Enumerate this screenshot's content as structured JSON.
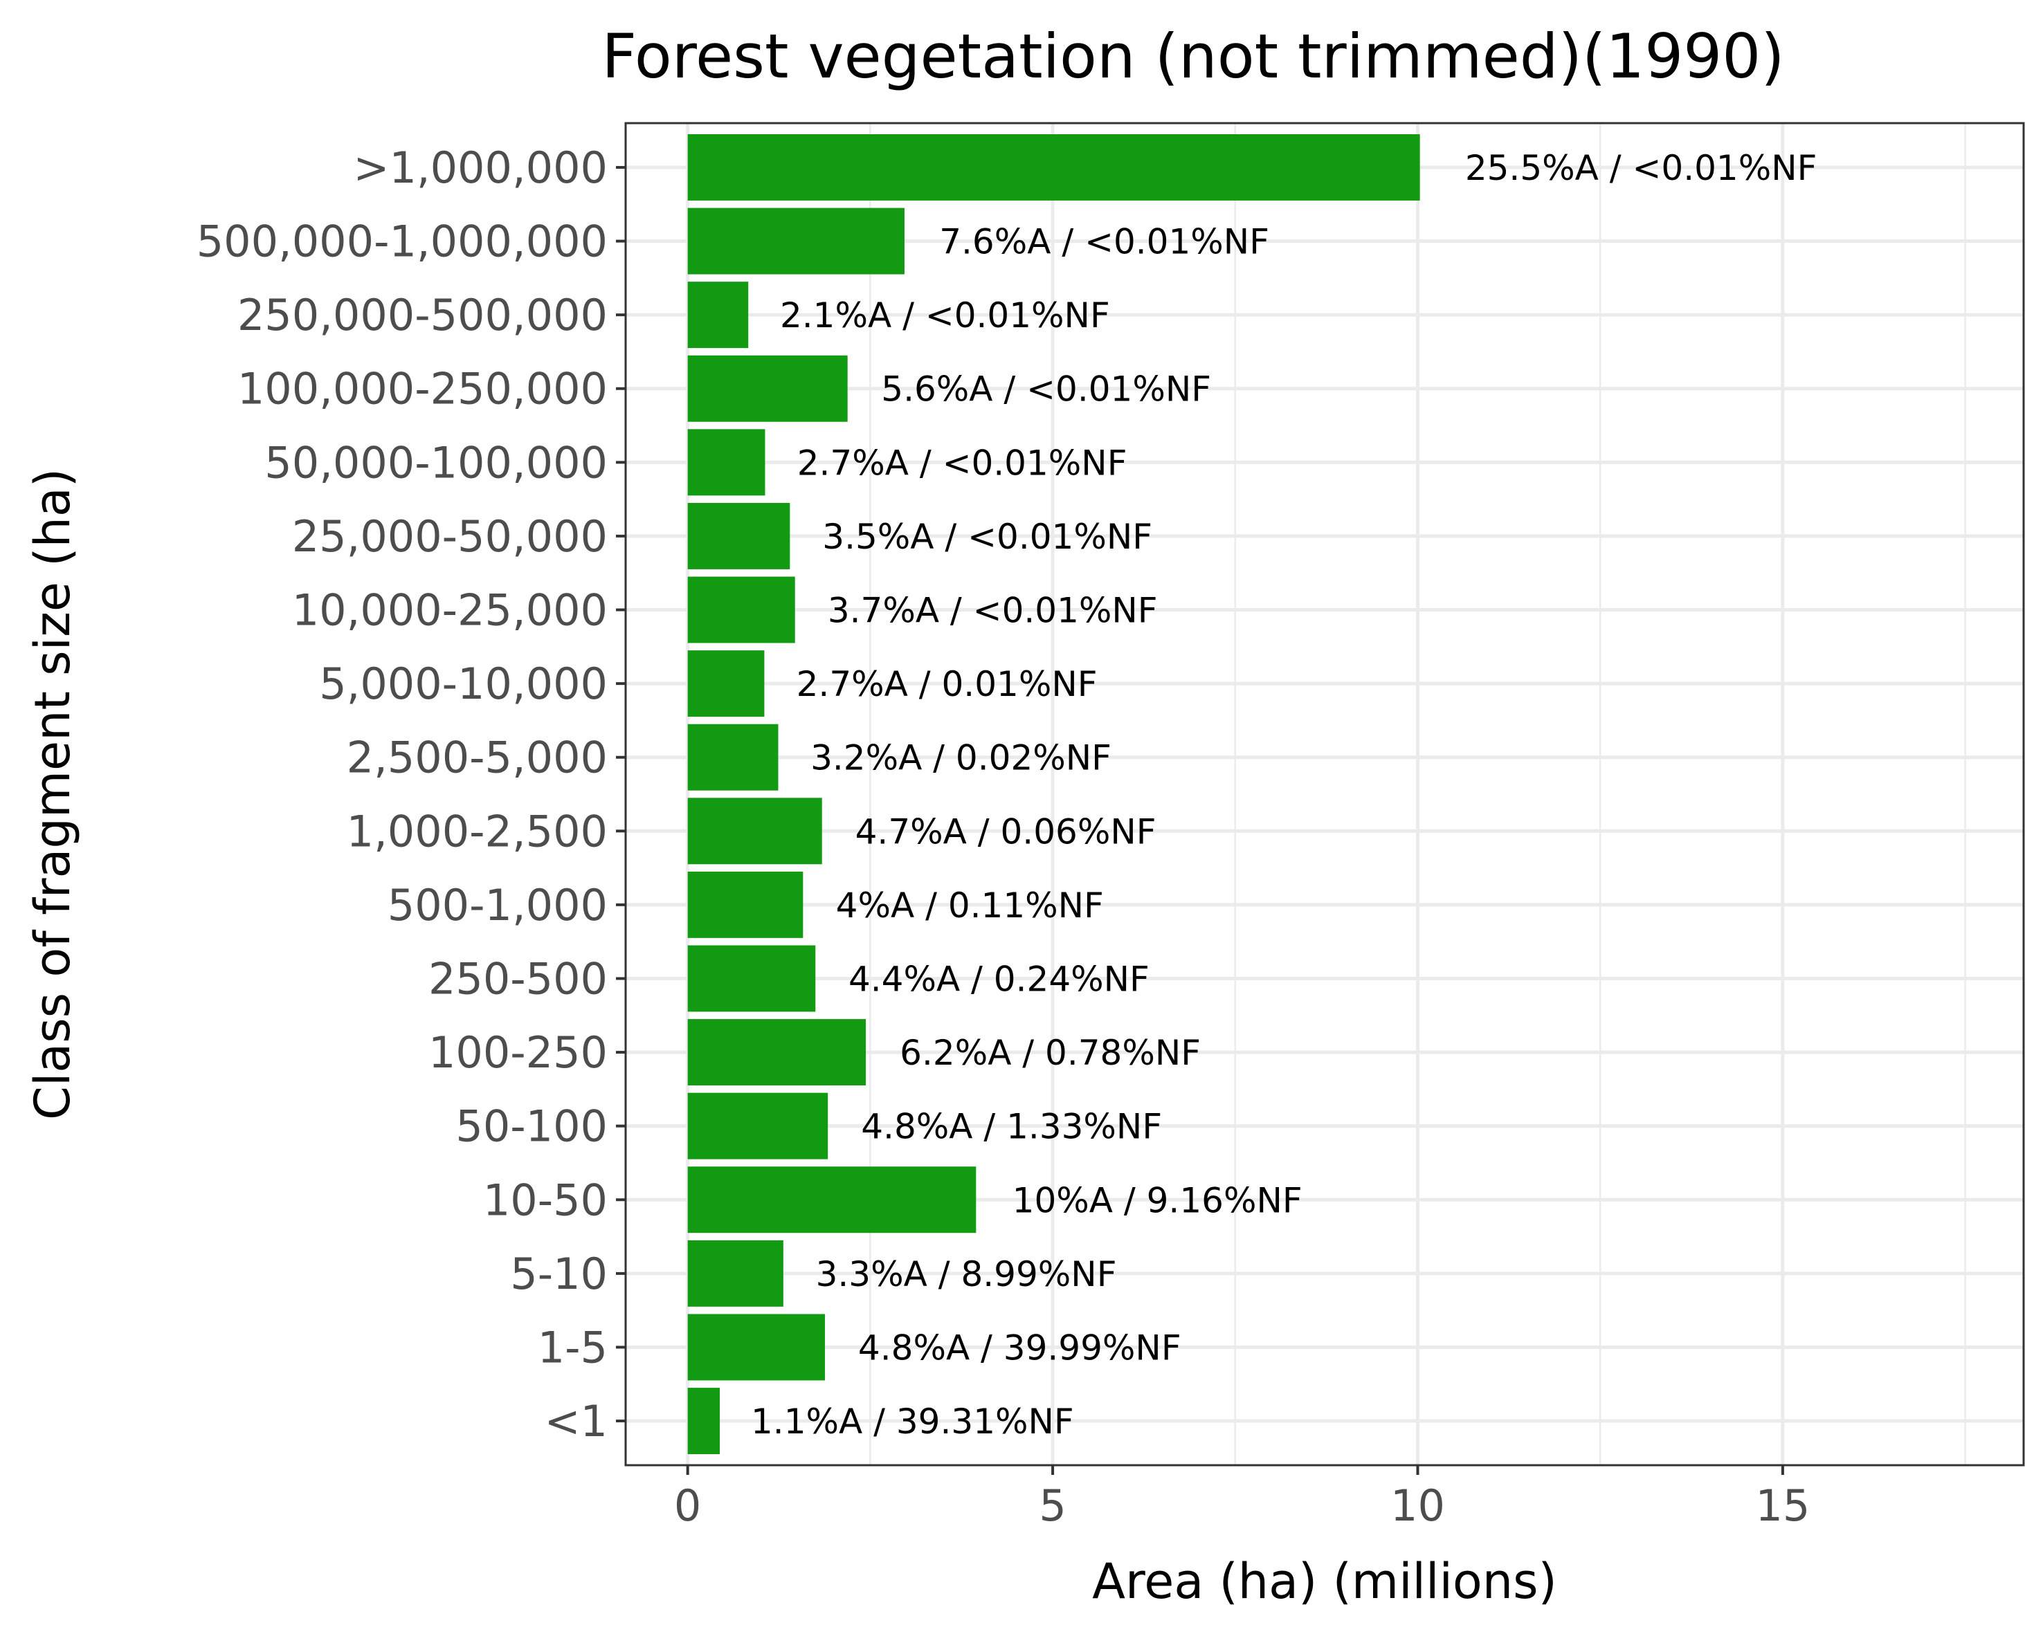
{
  "chart_data": {
    "type": "bar",
    "orientation": "horizontal",
    "title": "Forest vegetation (not trimmed)(1990)",
    "xlabel": "Area (ha) (millions)",
    "ylabel": "Class of fragment size (ha)",
    "xlim": [
      -0.85,
      18.3
    ],
    "xticks": [
      0,
      5,
      10,
      15
    ],
    "xtick_labels": [
      "0",
      "5",
      "10",
      "15"
    ],
    "grid": true,
    "bar_color": "#139a13",
    "categories": [
      ">1,000,000",
      "500,000-1,000,000",
      "250,000-500,000",
      "100,000-250,000",
      "50,000-100,000",
      "25,000-50,000",
      "10,000-25,000",
      "5,000-10,000",
      "2,500-5,000",
      "1,000-2,500",
      "500-1,000",
      "250-500",
      "100-250",
      "50-100",
      "10-50",
      "5-10",
      "1-5",
      "<1"
    ],
    "values": [
      10.03,
      2.97,
      0.83,
      2.19,
      1.06,
      1.4,
      1.47,
      1.05,
      1.24,
      1.84,
      1.58,
      1.75,
      2.44,
      1.92,
      3.95,
      1.31,
      1.88,
      0.44
    ],
    "labels": [
      "25.5%A / <0.01%NF",
      "7.6%A / <0.01%NF",
      "2.1%A / <0.01%NF",
      "5.6%A / <0.01%NF",
      "2.7%A / <0.01%NF",
      "3.5%A / <0.01%NF",
      "3.7%A / <0.01%NF",
      "2.7%A / 0.01%NF",
      "3.2%A / 0.02%NF",
      "4.7%A / 0.06%NF",
      "4%A / 0.11%NF",
      "4.4%A / 0.24%NF",
      "6.2%A / 0.78%NF",
      "4.8%A / 1.33%NF",
      "10%A / 9.16%NF",
      "3.3%A / 8.99%NF",
      "4.8%A / 39.99%NF",
      "1.1%A / 39.31%NF"
    ]
  }
}
